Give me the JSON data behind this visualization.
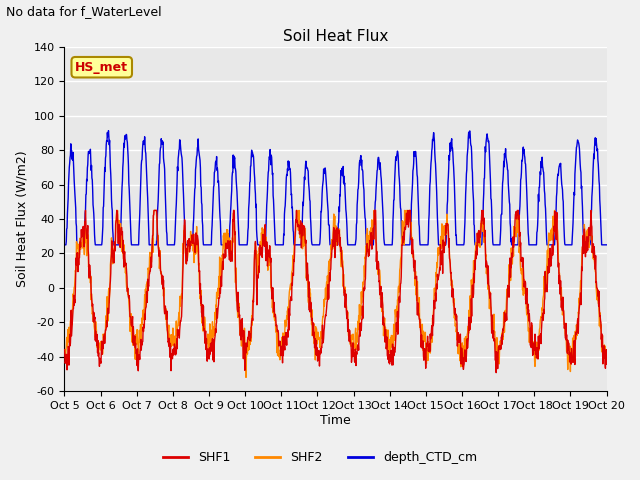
{
  "title": "Soil Heat Flux",
  "suptitle": "No data for f_WaterLevel",
  "ylabel": "Soil Heat Flux (W/m2)",
  "xlabel": "Time",
  "ylim": [
    -60,
    140
  ],
  "yticks": [
    -60,
    -40,
    -20,
    0,
    20,
    40,
    60,
    80,
    100,
    120,
    140
  ],
  "xtick_labels": [
    "Oct 5",
    "Oct 6",
    "Oct 7",
    "Oct 8",
    "Oct 9",
    "Oct 10",
    "Oct 11",
    "Oct 12",
    "Oct 13",
    "Oct 14",
    "Oct 15",
    "Oct 16",
    "Oct 17",
    "Oct 18",
    "Oct 19",
    "Oct 20"
  ],
  "shf1_color": "#dd0000",
  "shf2_color": "#ff8800",
  "depth_color": "#0000dd",
  "legend_labels": [
    "SHF1",
    "SHF2",
    "depth_CTD_cm"
  ],
  "annotation_text": "HS_met",
  "annotation_color": "#cc0000",
  "annotation_bg": "#ffff99",
  "annotation_border": "#aa8800",
  "fig_bg": "#f0f0f0",
  "plot_bg": "#e8e8e8",
  "grid_color": "#ffffff",
  "n_days": 15,
  "samples_per_day": 96,
  "figsize": [
    6.4,
    4.8
  ],
  "dpi": 100
}
